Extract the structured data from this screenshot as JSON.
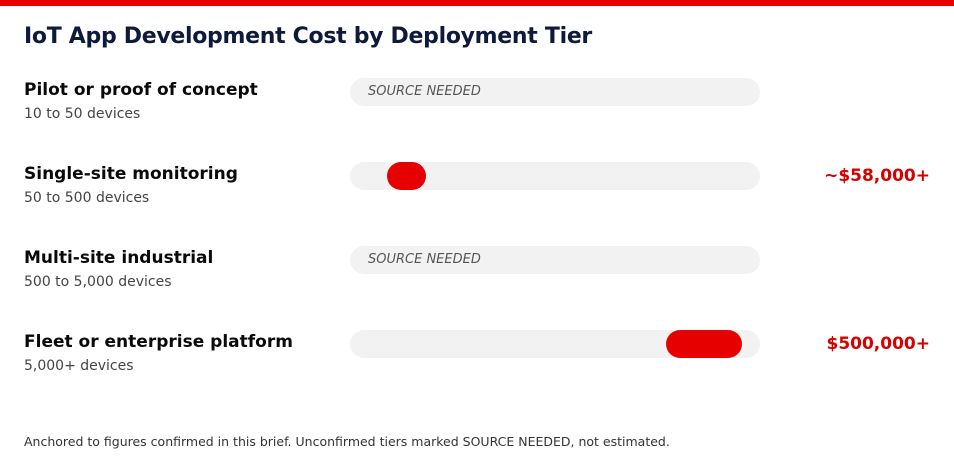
{
  "chart_data": {
    "type": "bar",
    "title": "IoT App Development Cost by Deployment Tier",
    "categories": [
      "Pilot or proof of concept",
      "Single-site monitoring",
      "Multi-site industrial",
      "Fleet or enterprise platform"
    ],
    "values": [
      null,
      58000,
      null,
      500000
    ],
    "unit": "USD",
    "rows": [
      {
        "name": "Pilot or proof of concept",
        "devices": "10 to 50 devices",
        "note": "SOURCE NEEDED",
        "value": null,
        "value_label": "",
        "fill_start": null,
        "fill_end": null
      },
      {
        "name": "Single-site monitoring",
        "devices": "50 to 500 devices",
        "note": "",
        "value": 58000,
        "value_label": "~$58,000+",
        "fill_start": 0.09,
        "fill_end": 0.185
      },
      {
        "name": "Multi-site industrial",
        "devices": "500 to 5,000 devices",
        "note": "SOURCE NEEDED",
        "value": null,
        "value_label": "",
        "fill_start": null,
        "fill_end": null
      },
      {
        "name": "Fleet or enterprise platform",
        "devices": "5,000+ devices",
        "note": "",
        "value": 500000,
        "value_label": "$500,000+",
        "fill_start": 0.77,
        "fill_end": 0.955
      }
    ],
    "colors": {
      "accent": "#e60000",
      "track": "#f2f2f2",
      "value_text": "#d60000"
    }
  },
  "footnote": "Anchored to figures confirmed in this brief. Unconfirmed tiers marked SOURCE NEEDED, not estimated."
}
